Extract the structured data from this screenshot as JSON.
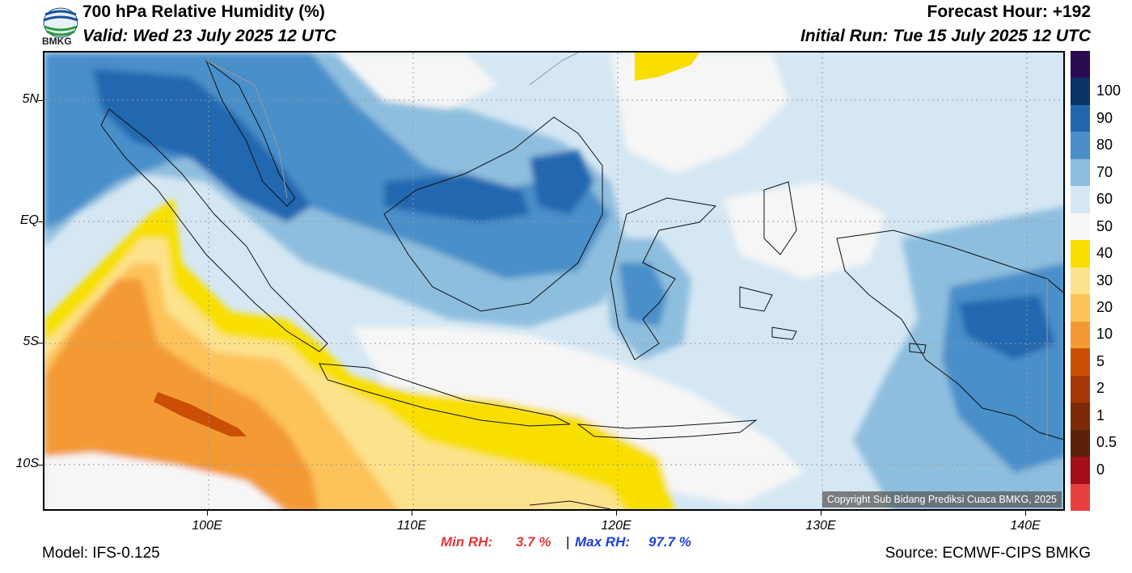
{
  "header": {
    "title": "700 hPa Relative Humidity (%)",
    "valid": "Valid: Wed 23 July 2025 12 UTC",
    "forecast_hour": "Forecast Hour: +192",
    "initial_run": "Initial Run: Tue 15 July 2025 12 UTC",
    "logo_text": "BMKG"
  },
  "map": {
    "lat_labels": [
      "5N",
      "EQ",
      "5S",
      "10S"
    ],
    "lon_labels": [
      "100E",
      "110E",
      "120E",
      "130E",
      "140E"
    ],
    "copyright": "Copyright Sub Bidang Prediksi Cuaca BMKG, 2025",
    "colors": {
      "ocean_dry": "#f39a34",
      "yellow": "#f8df00",
      "light": "#f6f6f6",
      "blue_light": "#d5e7f3",
      "blue_mid": "#8ebede",
      "blue_dark": "#1f5fa8"
    }
  },
  "colorbar": {
    "colors": [
      "#2a0b52",
      "#0c3366",
      "#2167b0",
      "#4a8fc9",
      "#8ebede",
      "#d5e7f3",
      "#f6f6f6",
      "#f8df00",
      "#fde28c",
      "#fdc35a",
      "#f39a34",
      "#cb4e05",
      "#a43807",
      "#7d2a06",
      "#5c2208",
      "#a20f17",
      "#e8413d"
    ],
    "labels": [
      "100",
      "90",
      "80",
      "70",
      "60",
      "50",
      "40",
      "30",
      "20",
      "10",
      "5",
      "2",
      "1",
      "0.5",
      "0"
    ]
  },
  "stats": {
    "min_label": "Min RH:",
    "min_value": "3.7 %",
    "separator": "|",
    "max_label": "Max RH:",
    "max_value": "97.7 %"
  },
  "footer": {
    "model": "Model: IFS-0.125",
    "source": "Source: ECMWF-CIPS BMKG"
  }
}
